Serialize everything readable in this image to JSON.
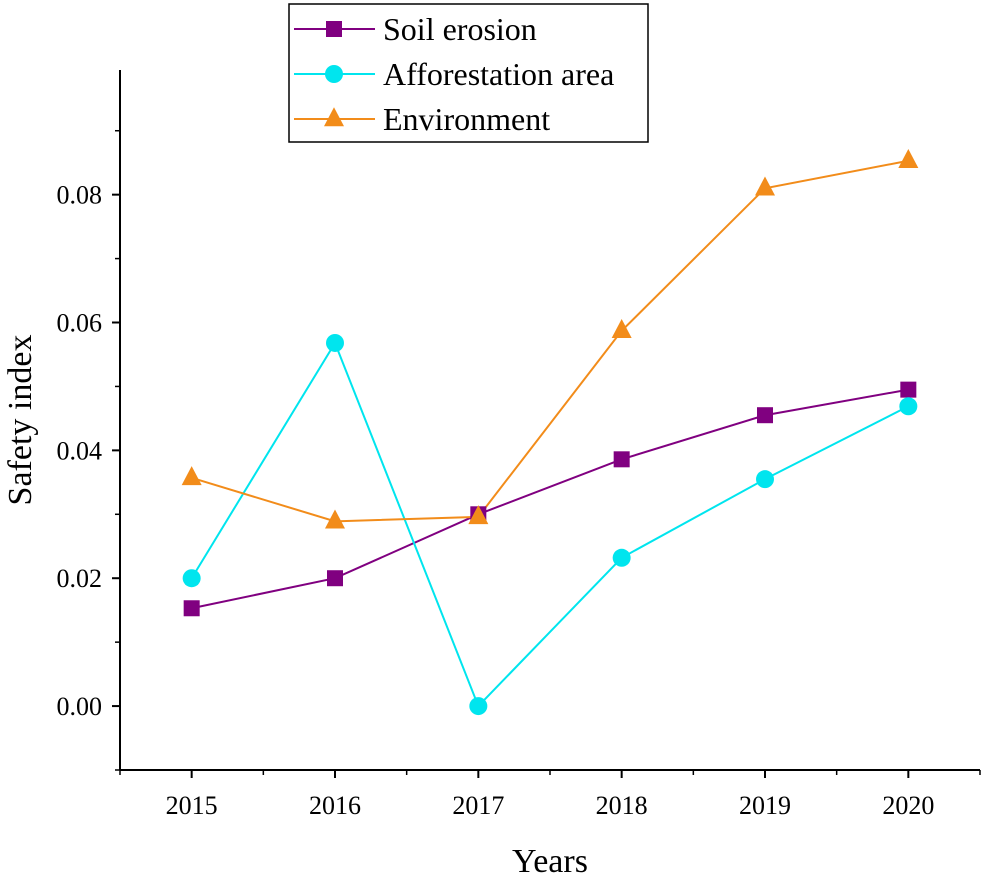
{
  "chart_data": {
    "type": "line",
    "title": "",
    "xlabel": "Years",
    "ylabel": "Safety index",
    "x": [
      2015,
      2016,
      2017,
      2018,
      2019,
      2020
    ],
    "x_tick_labels": [
      "2015",
      "2016",
      "2017",
      "2018",
      "2019",
      "2020"
    ],
    "ylim": [
      -0.01,
      0.0995
    ],
    "y_ticks": [
      0.0,
      0.02,
      0.04,
      0.06,
      0.08
    ],
    "y_tick_labels": [
      "0.00",
      "0.02",
      "0.04",
      "0.06",
      "0.08"
    ],
    "grid": false,
    "legend_position": "top-center",
    "series": [
      {
        "name": "Soil erosion",
        "color": "#800080",
        "marker": "square",
        "values": [
          0.0153,
          0.02,
          0.03,
          0.0386,
          0.0455,
          0.0495
        ]
      },
      {
        "name": "Afforestation area",
        "color": "#00e5ee",
        "marker": "circle",
        "values": [
          0.02,
          0.0568,
          0.0,
          0.0232,
          0.0355,
          0.0469
        ]
      },
      {
        "name": "Environment",
        "color": "#f28c1a",
        "marker": "triangle",
        "values": [
          0.0357,
          0.0289,
          0.0296,
          0.0587,
          0.081,
          0.0853
        ]
      }
    ]
  }
}
